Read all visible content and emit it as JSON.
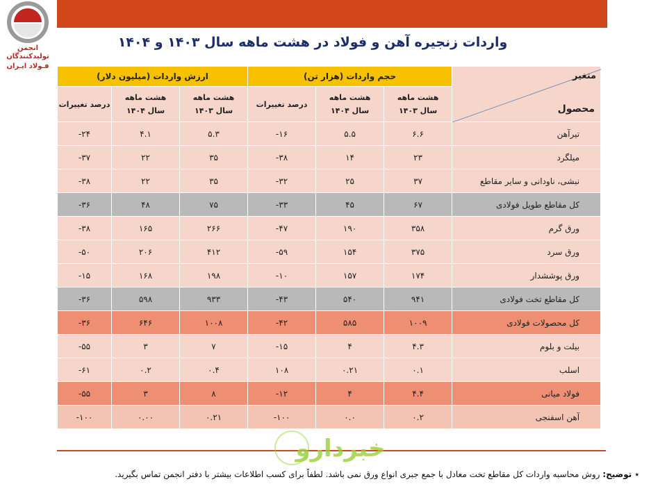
{
  "logo": {
    "line1": "انجمن تولیدکنندگان",
    "line2": "فـولاد ایـران"
  },
  "title": "واردات زنجیره آهن و فولاد در هشت ماهه سال ۱۴۰۳ و ۱۴۰۴",
  "header": {
    "variable": "متغیر",
    "product": "محصول",
    "volume_group": "حجم واردات (هزار تن)",
    "value_group": "ارزش واردات (میلیون دلار)",
    "col_1403_line1": "هشت ماهه",
    "col_1403_line2": "سال ۱۴۰۳",
    "col_1404_line1": "هشت ماهه",
    "col_1404_line2": "سال ۱۴۰۴",
    "change": "درصد تغییرات"
  },
  "rows": [
    {
      "name": "تیرآهن",
      "v1403": "۶.۶",
      "v1404": "۵.۵",
      "vchg": "۱۶-",
      "d1403": "۵.۳",
      "d1404": "۴.۱",
      "dchg": "۲۴-",
      "style": "light"
    },
    {
      "name": "میلگرد",
      "v1403": "۲۳",
      "v1404": "۱۴",
      "vchg": "۳۸-",
      "d1403": "۳۵",
      "d1404": "۲۲",
      "dchg": "۳۷-",
      "style": "light"
    },
    {
      "name": "نبشی، ناودانی و سایر مقاطع",
      "v1403": "۳۷",
      "v1404": "۲۵",
      "vchg": "۳۲-",
      "d1403": "۳۵",
      "d1404": "۲۲",
      "dchg": "۳۸-",
      "style": "light"
    },
    {
      "name": "کل مقاطع طویل فولادی",
      "v1403": "۶۷",
      "v1404": "۴۵",
      "vchg": "۳۳-",
      "d1403": "۷۵",
      "d1404": "۴۸",
      "dchg": "۳۶-",
      "style": "gray"
    },
    {
      "name": "ورق گرم",
      "v1403": "۳۵۸",
      "v1404": "۱۹۰",
      "vchg": "۴۷-",
      "d1403": "۲۶۶",
      "d1404": "۱۶۵",
      "dchg": "۳۸-",
      "style": "light"
    },
    {
      "name": "ورق سرد",
      "v1403": "۳۷۵",
      "v1404": "۱۵۴",
      "vchg": "۵۹-",
      "d1403": "۴۱۲",
      "d1404": "۲۰۶",
      "dchg": "۵۰-",
      "style": "light"
    },
    {
      "name": "ورق پوششدار",
      "v1403": "۱۷۴",
      "v1404": "۱۵۷",
      "vchg": "۱۰-",
      "d1403": "۱۹۸",
      "d1404": "۱۶۸",
      "dchg": "۱۵-",
      "style": "light"
    },
    {
      "name": "کل مقاطع تخت فولادی",
      "v1403": "۹۴۱",
      "v1404": "۵۴۰",
      "vchg": "۴۳-",
      "d1403": "۹۳۳",
      "d1404": "۵۹۸",
      "dchg": "۳۶-",
      "style": "gray"
    },
    {
      "name": "کل محصولات فولادی",
      "v1403": "۱۰۰۹",
      "v1404": "۵۸۵",
      "vchg": "۴۲-",
      "d1403": "۱۰۰۸",
      "d1404": "۶۴۶",
      "dchg": "۳۶-",
      "style": "red"
    },
    {
      "name": "بیلت و بلوم",
      "v1403": "۴.۳",
      "v1404": "۴",
      "vchg": "۱۵-",
      "d1403": "۷",
      "d1404": "۳",
      "dchg": "۵۵-",
      "style": "light"
    },
    {
      "name": "اسلب",
      "v1403": "۰.۱",
      "v1404": "۰.۲۱",
      "vchg": "۱۰۸",
      "d1403": "۰.۴",
      "d1404": "۰.۲",
      "dchg": "۶۱-",
      "style": "light"
    },
    {
      "name": "فولاد میانی",
      "v1403": "۴.۴",
      "v1404": "۴",
      "vchg": "۱۲-",
      "d1403": "۸",
      "d1404": "۳",
      "dchg": "۵۵-",
      "style": "red"
    },
    {
      "name": "آهن اسفنجی",
      "v1403": "۰.۲",
      "v1404": "۰.۰",
      "vchg": "۱۰۰-",
      "d1403": "۰.۲۱",
      "d1404": "۰.۰۰",
      "dchg": "۱۰۰-",
      "style": "pink"
    }
  ],
  "footnote": {
    "marker": "٭ توضیح:",
    "text": "روش محاسبه واردات کل مقاطع تخت معادل با جمع جبری انواع ورق نمی باشد. لطفاً برای کسب اطلاعات بیشتر با دفتر انجمن تماس بگیرید."
  },
  "watermark": {
    "text": "خبردارو"
  },
  "colors": {
    "accent": "#d2461b",
    "header_yellow": "#f7c100",
    "row_light": "#f6d6ca",
    "row_gray": "#b9b9b9",
    "row_red": "#ee8f73",
    "title": "#1c2d6b"
  }
}
